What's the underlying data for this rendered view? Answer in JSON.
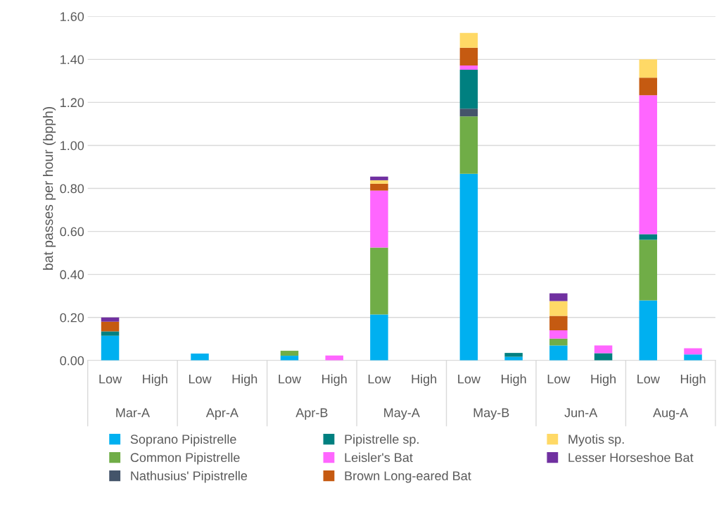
{
  "chart_data": {
    "type": "bar",
    "stacked": true,
    "ylabel": "bat passes per hour (bpph)",
    "categories": [
      "Low",
      "High",
      "Low",
      "High",
      "Low",
      "High",
      "Low",
      "High",
      "Low",
      "High",
      "Low",
      "High",
      "Low",
      "High"
    ],
    "annotations": [
      "Mar-A",
      "Apr-A",
      "Apr-B",
      "May-A",
      "May-B",
      "Jun-A",
      "Aug-A"
    ],
    "series": [
      {
        "name": "Soprano Pipistrelle",
        "color": "#00b0f0",
        "values": [
          0.115,
          null,
          0.032,
          null,
          0.022,
          null,
          0.214,
          null,
          0.868,
          0.017,
          0.07,
          null,
          0.279,
          0.028
        ]
      },
      {
        "name": "Common Pipistrelle",
        "color": "#70ad47",
        "values": [
          null,
          null,
          null,
          null,
          0.023,
          null,
          0.311,
          null,
          0.267,
          null,
          0.032,
          null,
          0.282,
          null
        ]
      },
      {
        "name": "Nathusius' Pipistrelle",
        "color": "#44546a",
        "values": [
          null,
          null,
          null,
          null,
          null,
          null,
          null,
          null,
          0.036,
          null,
          null,
          null,
          null,
          null
        ]
      },
      {
        "name": "Pipistrelle sp.",
        "color": "#008080",
        "values": [
          0.02,
          null,
          null,
          null,
          null,
          null,
          null,
          null,
          0.181,
          0.018,
          null,
          0.034,
          0.026,
          null
        ]
      },
      {
        "name": "Leisler's Bat",
        "color": "#ff66ff",
        "values": [
          null,
          null,
          null,
          null,
          null,
          0.023,
          0.265,
          null,
          0.02,
          null,
          0.038,
          0.036,
          0.646,
          0.029
        ]
      },
      {
        "name": "Brown Long-eared Bat",
        "color": "#c55a11",
        "values": [
          0.045,
          null,
          null,
          null,
          null,
          null,
          0.032,
          null,
          0.082,
          null,
          0.067,
          null,
          0.082,
          null
        ]
      },
      {
        "name": "Myotis sp.",
        "color": "#ffd966",
        "values": [
          null,
          null,
          null,
          null,
          null,
          null,
          0.016,
          null,
          0.069,
          null,
          0.069,
          null,
          0.085,
          null
        ]
      },
      {
        "name": "Lesser Horseshoe Bat",
        "color": "#7030a0",
        "values": [
          0.02,
          null,
          null,
          null,
          null,
          null,
          0.017,
          null,
          null,
          null,
          0.036,
          null,
          null,
          null
        ]
      }
    ],
    "ylim": [
      0,
      1.6
    ],
    "yticks": [
      {
        "value": 0,
        "label": "0.00"
      },
      {
        "value": 0.2,
        "label": "0.20"
      },
      {
        "value": 0.4,
        "label": "0.40"
      },
      {
        "value": 0.6,
        "label": "0.60"
      },
      {
        "value": 0.8,
        "label": "0.80"
      },
      {
        "value": 1.0,
        "label": "1.00"
      },
      {
        "value": 1.2,
        "label": "1.20"
      },
      {
        "value": 1.4,
        "label": "1.40"
      },
      {
        "value": 1.6,
        "label": "1.60"
      }
    ],
    "grid": "y",
    "legend": "bottom"
  }
}
